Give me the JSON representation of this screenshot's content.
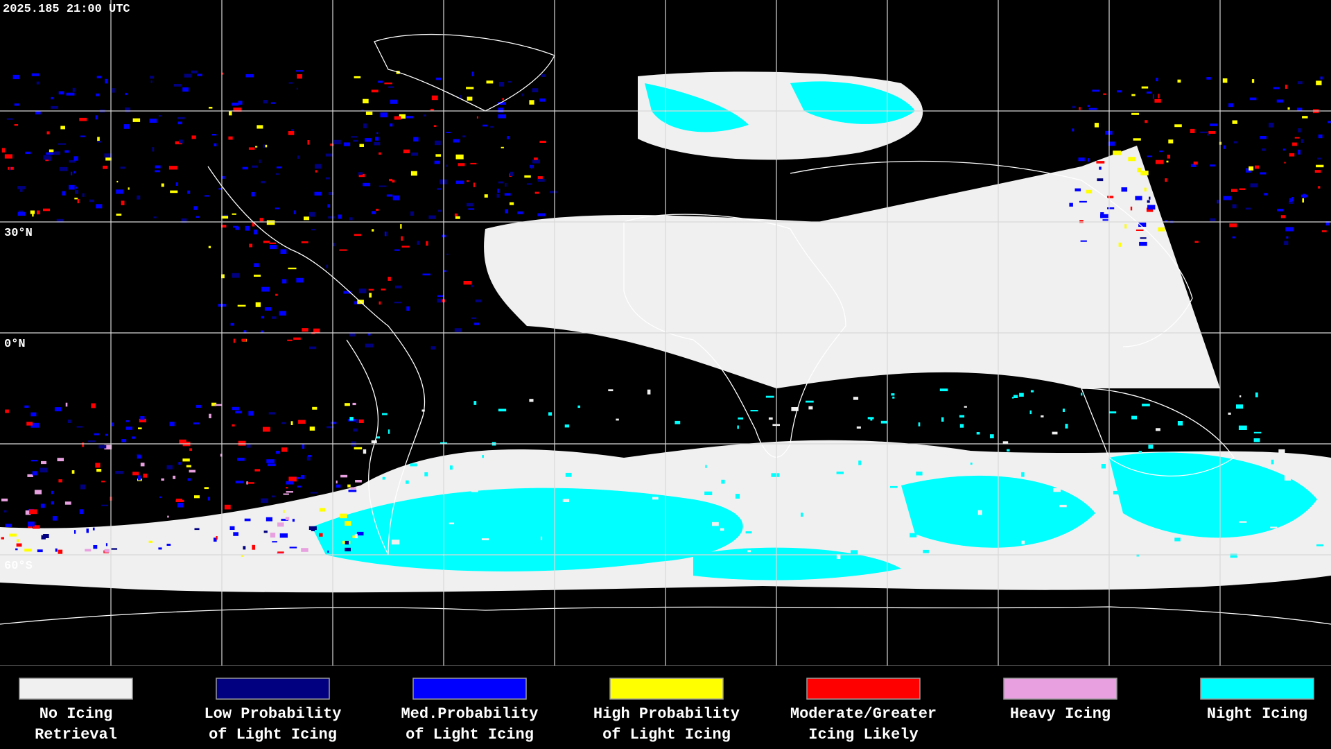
{
  "header": {
    "timestamp": "2025.185 21:00 UTC"
  },
  "map": {
    "latitude_labels": [
      "30°N",
      "0°N",
      "60°S"
    ]
  },
  "legend": {
    "items": [
      {
        "label_lines": [
          "No Icing",
          "Retrieval"
        ],
        "color": "#f0f0f0"
      },
      {
        "label_lines": [
          "Low Probability",
          "of Light Icing"
        ],
        "color": "#000080"
      },
      {
        "label_lines": [
          "Med.Probability",
          "of Light Icing"
        ],
        "color": "#0000ff"
      },
      {
        "label_lines": [
          "High Probability",
          "of Light Icing"
        ],
        "color": "#ffff00"
      },
      {
        "label_lines": [
          "Moderate/Greater",
          "Icing Likely"
        ],
        "color": "#ff0000"
      },
      {
        "label_lines": [
          "Heavy Icing"
        ],
        "color": "#e8a0e0"
      },
      {
        "label_lines": [
          "Night Icing"
        ],
        "color": "#00ffff"
      }
    ]
  }
}
